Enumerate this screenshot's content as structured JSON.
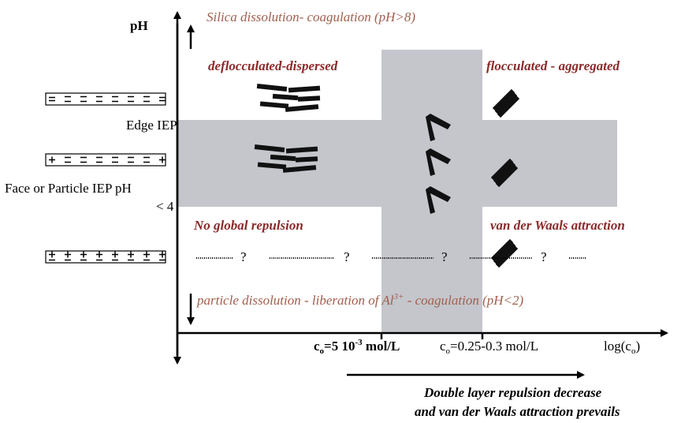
{
  "axis": {
    "y_label": "pH",
    "x_label": [
      "log(c",
      "o",
      ")"
    ]
  },
  "annotations": {
    "top": "Silica dissolution- coagulation (pH>8)",
    "bottom": [
      "particle dissolution - liberation of Al",
      "3+",
      " - coagulation (pH<2)"
    ]
  },
  "regions": {
    "top_left": "deflocculated-dispersed",
    "top_right": "flocculated - aggregated",
    "bottom_left": "No global repulsion",
    "bottom_right": "van der Waals attraction"
  },
  "levels": {
    "edge": "Edge IEP",
    "face": [
      "Face or Particle IEP pH",
      "< 4"
    ]
  },
  "question_marks": [
    "?",
    "?",
    "?",
    "?"
  ],
  "concentrations": [
    [
      "c",
      "o",
      "=5 10",
      "-3",
      " mol/L"
    ],
    [
      "c",
      "o",
      "=0.25-0.3 mol/L"
    ]
  ],
  "footnote": [
    "Double layer repulsion decrease",
    "and van der Waals attraction prevails"
  ]
}
